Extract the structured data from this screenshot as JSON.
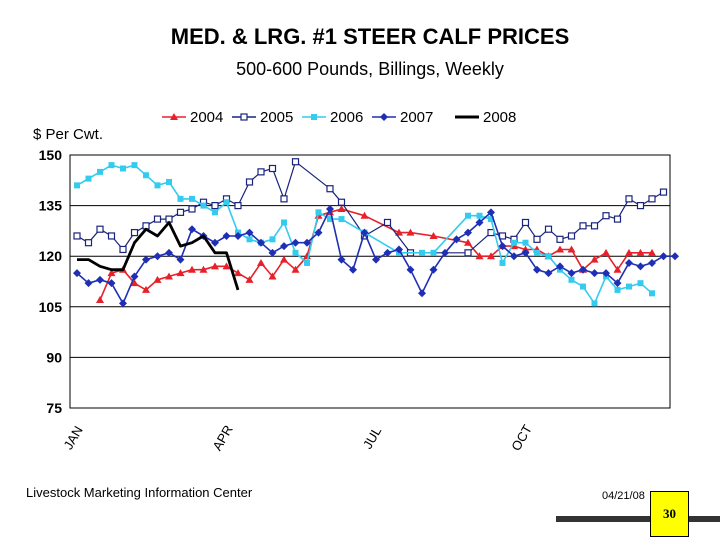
{
  "chart_data": {
    "type": "line",
    "title": "MED. & LRG.  #1  STEER  CALF  PRICES",
    "subtitle": "500-600 Pounds, Billings, Weekly",
    "ylabel": "$ Per Cwt.",
    "ylim": [
      75,
      150
    ],
    "yticks": [
      75,
      90,
      105,
      120,
      135,
      150
    ],
    "xlim": [
      0,
      52
    ],
    "xticks": [
      {
        "label": "JAN",
        "week": 0
      },
      {
        "label": "APR",
        "week": 13
      },
      {
        "label": "JUL",
        "week": 26
      },
      {
        "label": "OCT",
        "week": 39
      }
    ],
    "series": [
      {
        "name": "2004",
        "color": "#e8202a",
        "marker": "triangle",
        "line_width": 1.6,
        "points": [
          [
            2,
            107
          ],
          [
            3,
            115
          ],
          [
            4,
            116
          ],
          [
            5,
            112
          ],
          [
            6,
            110
          ],
          [
            7,
            113
          ],
          [
            8,
            114
          ],
          [
            9,
            115
          ],
          [
            10,
            116
          ],
          [
            11,
            116
          ],
          [
            12,
            117
          ],
          [
            13,
            117
          ],
          [
            14,
            115
          ],
          [
            15,
            113
          ],
          [
            16,
            118
          ],
          [
            17,
            114
          ],
          [
            18,
            119
          ],
          [
            19,
            116
          ],
          [
            20,
            120
          ],
          [
            21,
            132
          ],
          [
            22,
            133
          ],
          [
            23,
            134
          ],
          [
            25,
            132
          ],
          [
            28,
            127
          ],
          [
            29,
            127
          ],
          [
            31,
            126
          ],
          [
            34,
            124
          ],
          [
            35,
            120
          ],
          [
            36,
            120
          ],
          [
            37,
            123
          ],
          [
            38,
            123
          ],
          [
            39,
            122
          ],
          [
            40,
            122
          ],
          [
            41,
            120
          ],
          [
            42,
            122
          ],
          [
            43,
            122
          ],
          [
            44,
            116
          ],
          [
            45,
            119
          ],
          [
            46,
            121
          ],
          [
            47,
            116
          ],
          [
            48,
            121
          ],
          [
            49,
            121
          ],
          [
            50,
            121
          ]
        ]
      },
      {
        "name": "2005",
        "color": "#1a237e",
        "marker": "square-open",
        "line_width": 1.2,
        "points": [
          [
            0,
            126
          ],
          [
            1,
            124
          ],
          [
            2,
            128
          ],
          [
            3,
            126
          ],
          [
            4,
            122
          ],
          [
            5,
            127
          ],
          [
            6,
            129
          ],
          [
            7,
            131
          ],
          [
            8,
            131
          ],
          [
            9,
            133
          ],
          [
            10,
            134
          ],
          [
            11,
            136
          ],
          [
            12,
            135
          ],
          [
            13,
            137
          ],
          [
            14,
            135
          ],
          [
            15,
            142
          ],
          [
            16,
            145
          ],
          [
            17,
            146
          ],
          [
            18,
            137
          ],
          [
            19,
            148
          ],
          [
            22,
            140
          ],
          [
            23,
            136
          ],
          [
            25,
            126
          ],
          [
            27,
            130
          ],
          [
            29,
            121
          ],
          [
            34,
            121
          ],
          [
            36,
            127
          ],
          [
            37,
            126
          ],
          [
            38,
            125
          ],
          [
            39,
            130
          ],
          [
            40,
            125
          ],
          [
            41,
            128
          ],
          [
            42,
            125
          ],
          [
            43,
            126
          ],
          [
            44,
            129
          ],
          [
            45,
            129
          ],
          [
            46,
            132
          ],
          [
            47,
            131
          ],
          [
            48,
            137
          ],
          [
            49,
            135
          ],
          [
            50,
            137
          ],
          [
            51,
            139
          ]
        ]
      },
      {
        "name": "2006",
        "color": "#33ccee",
        "marker": "square",
        "line_width": 1.6,
        "points": [
          [
            0,
            141
          ],
          [
            1,
            143
          ],
          [
            2,
            145
          ],
          [
            3,
            147
          ],
          [
            4,
            146
          ],
          [
            5,
            147
          ],
          [
            6,
            144
          ],
          [
            7,
            141
          ],
          [
            8,
            142
          ],
          [
            9,
            137
          ],
          [
            10,
            137
          ],
          [
            11,
            135
          ],
          [
            12,
            133
          ],
          [
            13,
            136
          ],
          [
            14,
            127
          ],
          [
            15,
            125
          ],
          [
            16,
            124
          ],
          [
            17,
            125
          ],
          [
            18,
            130
          ],
          [
            19,
            121
          ],
          [
            20,
            118
          ],
          [
            21,
            133
          ],
          [
            22,
            131
          ],
          [
            23,
            131
          ],
          [
            25,
            127
          ],
          [
            28,
            121
          ],
          [
            30,
            121
          ],
          [
            31,
            121
          ],
          [
            34,
            132
          ],
          [
            35,
            132
          ],
          [
            36,
            131
          ],
          [
            37,
            118
          ],
          [
            38,
            124
          ],
          [
            39,
            124
          ],
          [
            40,
            121
          ],
          [
            41,
            120
          ],
          [
            42,
            116
          ],
          [
            43,
            113
          ],
          [
            44,
            111
          ],
          [
            45,
            106
          ],
          [
            46,
            114
          ],
          [
            47,
            110
          ],
          [
            48,
            111
          ],
          [
            49,
            112
          ],
          [
            50,
            109
          ]
        ]
      },
      {
        "name": "2007",
        "color": "#1f2fb5",
        "marker": "diamond",
        "line_width": 1.6,
        "points": [
          [
            0,
            115
          ],
          [
            1,
            112
          ],
          [
            2,
            113
          ],
          [
            3,
            112
          ],
          [
            4,
            106
          ],
          [
            5,
            114
          ],
          [
            6,
            119
          ],
          [
            7,
            120
          ],
          [
            8,
            121
          ],
          [
            9,
            119
          ],
          [
            10,
            128
          ],
          [
            11,
            126
          ],
          [
            12,
            124
          ],
          [
            13,
            126
          ],
          [
            14,
            126
          ],
          [
            15,
            127
          ],
          [
            16,
            124
          ],
          [
            17,
            121
          ],
          [
            18,
            123
          ],
          [
            19,
            124
          ],
          [
            20,
            124
          ],
          [
            21,
            127
          ],
          [
            22,
            134
          ],
          [
            23,
            119
          ],
          [
            24,
            116
          ],
          [
            25,
            127
          ],
          [
            26,
            119
          ],
          [
            27,
            121
          ],
          [
            28,
            122
          ],
          [
            29,
            116
          ],
          [
            30,
            109
          ],
          [
            31,
            116
          ],
          [
            32,
            121
          ],
          [
            33,
            125
          ],
          [
            34,
            127
          ],
          [
            35,
            130
          ],
          [
            36,
            133
          ],
          [
            37,
            123
          ],
          [
            38,
            120
          ],
          [
            39,
            121
          ],
          [
            40,
            116
          ],
          [
            41,
            115
          ],
          [
            42,
            117
          ],
          [
            43,
            115
          ],
          [
            44,
            116
          ],
          [
            45,
            115
          ],
          [
            46,
            115
          ],
          [
            47,
            112
          ],
          [
            48,
            118
          ],
          [
            49,
            117
          ],
          [
            50,
            118
          ],
          [
            51,
            120
          ],
          [
            52,
            120
          ]
        ]
      },
      {
        "name": "2008",
        "color": "#000000",
        "marker": "none",
        "line_width": 2.8,
        "points": [
          [
            0,
            119
          ],
          [
            1,
            119
          ],
          [
            2,
            117
          ],
          [
            3,
            116
          ],
          [
            4,
            116
          ],
          [
            5,
            124
          ],
          [
            6,
            128
          ],
          [
            7,
            126
          ],
          [
            8,
            130
          ],
          [
            9,
            123
          ],
          [
            10,
            124
          ],
          [
            11,
            126
          ],
          [
            12,
            121
          ],
          [
            13,
            121
          ],
          [
            14,
            110
          ]
        ]
      }
    ]
  },
  "footer": {
    "source": "Livestock Marketing Information Center",
    "date": "04/21/08",
    "page": "30"
  }
}
